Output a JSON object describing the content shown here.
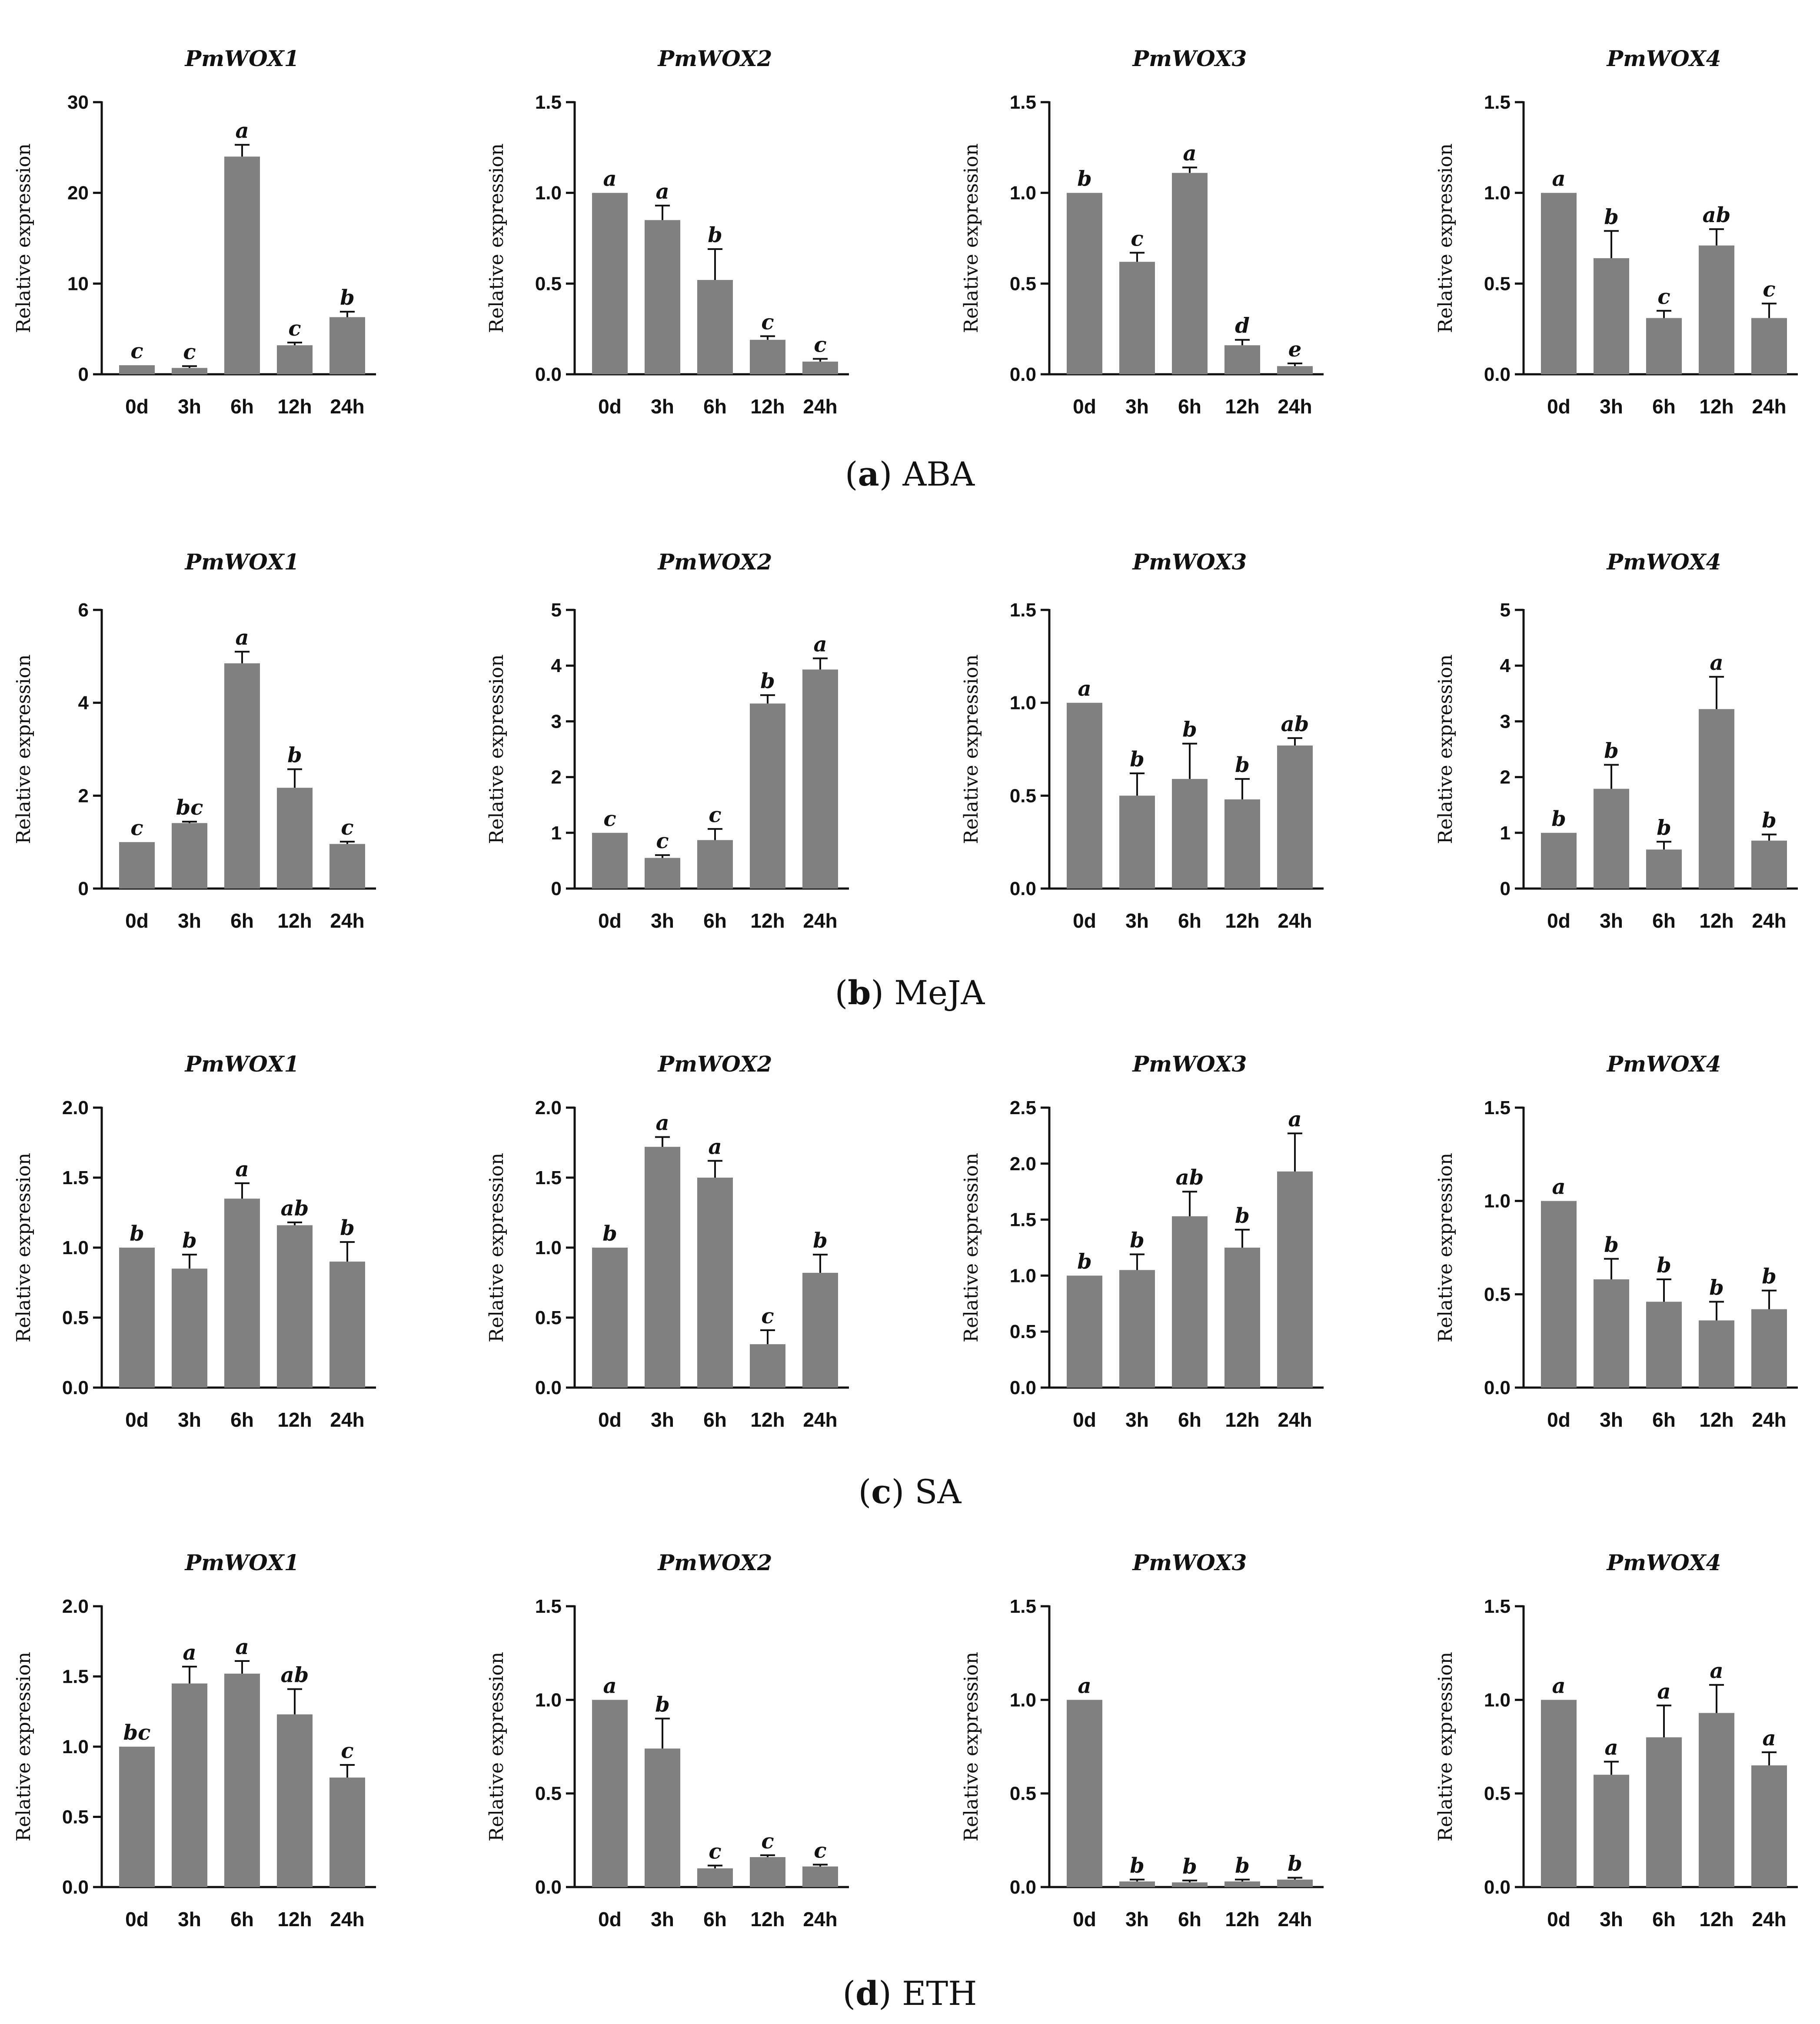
{
  "y_axis_title": "Relative expression",
  "groups": [
    {
      "letter": "a",
      "name": "ABA"
    },
    {
      "letter": "b",
      "name": "MeJA"
    },
    {
      "letter": "c",
      "name": "SA"
    },
    {
      "letter": "d",
      "name": "ETH"
    }
  ],
  "chart_data": [
    {
      "type": "bar",
      "group": "ABA",
      "title": "PmWOX1",
      "ylabel": "Relative expression",
      "categories": [
        "0d",
        "3h",
        "6h",
        "12h",
        "24h"
      ],
      "values": [
        1.0,
        0.7,
        24.0,
        3.2,
        6.3
      ],
      "errors": [
        0,
        0.2,
        1.3,
        0.3,
        0.6
      ],
      "letters": [
        "c",
        "c",
        "a",
        "c",
        "b"
      ],
      "ylim": [
        0,
        30
      ],
      "yticks": [
        "0",
        "10",
        "20",
        "30"
      ]
    },
    {
      "type": "bar",
      "group": "ABA",
      "title": "PmWOX2",
      "ylabel": "Relative expression",
      "categories": [
        "0d",
        "3h",
        "6h",
        "12h",
        "24h"
      ],
      "values": [
        1.0,
        0.85,
        0.52,
        0.19,
        0.07
      ],
      "errors": [
        0,
        0.08,
        0.17,
        0.02,
        0.015
      ],
      "letters": [
        "a",
        "a",
        "b",
        "c",
        "c"
      ],
      "ylim": [
        0,
        1.5
      ],
      "yticks": [
        "0.0",
        "0.5",
        "1.0",
        "1.5"
      ]
    },
    {
      "type": "bar",
      "group": "ABA",
      "title": "PmWOX3",
      "ylabel": "Relative expression",
      "categories": [
        "0d",
        "3h",
        "6h",
        "12h",
        "24h"
      ],
      "values": [
        1.0,
        0.62,
        1.11,
        0.16,
        0.045
      ],
      "errors": [
        0,
        0.05,
        0.03,
        0.03,
        0.015
      ],
      "letters": [
        "b",
        "c",
        "a",
        "d",
        "e"
      ],
      "ylim": [
        0,
        1.5
      ],
      "yticks": [
        "0.0",
        "0.5",
        "1.0",
        "1.5"
      ]
    },
    {
      "type": "bar",
      "group": "ABA",
      "title": "PmWOX4",
      "ylabel": "Relative expression",
      "categories": [
        "0d",
        "3h",
        "6h",
        "12h",
        "24h"
      ],
      "values": [
        1.0,
        0.64,
        0.31,
        0.71,
        0.31
      ],
      "errors": [
        0,
        0.15,
        0.04,
        0.09,
        0.08
      ],
      "letters": [
        "a",
        "b",
        "c",
        "ab",
        "c"
      ],
      "ylim": [
        0,
        1.5
      ],
      "yticks": [
        "0.0",
        "0.5",
        "1.0",
        "1.5"
      ]
    },
    {
      "type": "bar",
      "group": "MeJA",
      "title": "PmWOX1",
      "ylabel": "Relative expression",
      "categories": [
        "0d",
        "3h",
        "6h",
        "12h",
        "24h"
      ],
      "values": [
        1.0,
        1.41,
        4.85,
        2.17,
        0.96
      ],
      "errors": [
        0,
        0.03,
        0.25,
        0.4,
        0.05
      ],
      "letters": [
        "c",
        "bc",
        "a",
        "b",
        "c"
      ],
      "ylim": [
        0,
        6
      ],
      "yticks": [
        "0",
        "2",
        "4",
        "6"
      ]
    },
    {
      "type": "bar",
      "group": "MeJA",
      "title": "PmWOX2",
      "ylabel": "Relative expression",
      "categories": [
        "0d",
        "3h",
        "6h",
        "12h",
        "24h"
      ],
      "values": [
        1.0,
        0.55,
        0.87,
        3.32,
        3.93
      ],
      "errors": [
        0,
        0.05,
        0.2,
        0.15,
        0.2
      ],
      "letters": [
        "c",
        "c",
        "c",
        "b",
        "a"
      ],
      "ylim": [
        0,
        5
      ],
      "yticks": [
        "0",
        "1",
        "2",
        "3",
        "4",
        "5"
      ]
    },
    {
      "type": "bar",
      "group": "MeJA",
      "title": "PmWOX3",
      "ylabel": "Relative expression",
      "categories": [
        "0d",
        "3h",
        "6h",
        "12h",
        "24h"
      ],
      "values": [
        1.0,
        0.5,
        0.59,
        0.48,
        0.77
      ],
      "errors": [
        0,
        0.12,
        0.19,
        0.11,
        0.04
      ],
      "letters": [
        "a",
        "b",
        "b",
        "b",
        "ab"
      ],
      "ylim": [
        0,
        1.5
      ],
      "yticks": [
        "0.0",
        "0.5",
        "1.0",
        "1.5"
      ]
    },
    {
      "type": "bar",
      "group": "MeJA",
      "title": "PmWOX4",
      "ylabel": "Relative expression",
      "categories": [
        "0d",
        "3h",
        "6h",
        "12h",
        "24h"
      ],
      "values": [
        1.0,
        1.79,
        0.7,
        3.22,
        0.86
      ],
      "errors": [
        0,
        0.43,
        0.14,
        0.58,
        0.11
      ],
      "letters": [
        "b",
        "b",
        "b",
        "a",
        "b"
      ],
      "ylim": [
        0,
        5
      ],
      "yticks": [
        "0",
        "1",
        "2",
        "3",
        "4",
        "5"
      ]
    },
    {
      "type": "bar",
      "group": "SA",
      "title": "PmWOX1",
      "ylabel": "Relative expression",
      "categories": [
        "0d",
        "3h",
        "6h",
        "12h",
        "24h"
      ],
      "values": [
        1.0,
        0.85,
        1.35,
        1.16,
        0.9
      ],
      "errors": [
        0,
        0.1,
        0.11,
        0.02,
        0.14
      ],
      "letters": [
        "b",
        "b",
        "a",
        "ab",
        "b"
      ],
      "ylim": [
        0,
        2.0
      ],
      "yticks": [
        "0.0",
        "0.5",
        "1.0",
        "1.5",
        "2.0"
      ]
    },
    {
      "type": "bar",
      "group": "SA",
      "title": "PmWOX2",
      "ylabel": "Relative expression",
      "categories": [
        "0d",
        "3h",
        "6h",
        "12h",
        "24h"
      ],
      "values": [
        1.0,
        1.72,
        1.5,
        0.31,
        0.82
      ],
      "errors": [
        0,
        0.07,
        0.12,
        0.1,
        0.13
      ],
      "letters": [
        "b",
        "a",
        "a",
        "c",
        "b"
      ],
      "ylim": [
        0,
        2.0
      ],
      "yticks": [
        "0.0",
        "0.5",
        "1.0",
        "1.5",
        "2.0"
      ]
    },
    {
      "type": "bar",
      "group": "SA",
      "title": "PmWOX3",
      "ylabel": "Relative expression",
      "categories": [
        "0d",
        "3h",
        "6h",
        "12h",
        "24h"
      ],
      "values": [
        1.0,
        1.05,
        1.53,
        1.25,
        1.93
      ],
      "errors": [
        0,
        0.14,
        0.22,
        0.16,
        0.34
      ],
      "letters": [
        "b",
        "b",
        "ab",
        "b",
        "a"
      ],
      "ylim": [
        0,
        2.5
      ],
      "yticks": [
        "0.0",
        "0.5",
        "1.0",
        "1.5",
        "2.0",
        "2.5"
      ]
    },
    {
      "type": "bar",
      "group": "SA",
      "title": "PmWOX4",
      "ylabel": "Relative expression",
      "categories": [
        "0d",
        "3h",
        "6h",
        "12h",
        "24h"
      ],
      "values": [
        1.0,
        0.58,
        0.46,
        0.36,
        0.42
      ],
      "errors": [
        0,
        0.11,
        0.12,
        0.1,
        0.1
      ],
      "letters": [
        "a",
        "b",
        "b",
        "b",
        "b"
      ],
      "ylim": [
        0,
        1.5
      ],
      "yticks": [
        "0.0",
        "0.5",
        "1.0",
        "1.5"
      ]
    },
    {
      "type": "bar",
      "group": "ETH",
      "title": "PmWOX1",
      "ylabel": "Relative expression",
      "categories": [
        "0d",
        "3h",
        "6h",
        "12h",
        "24h"
      ],
      "values": [
        1.0,
        1.45,
        1.52,
        1.23,
        0.78
      ],
      "errors": [
        0,
        0.12,
        0.09,
        0.18,
        0.09
      ],
      "letters": [
        "bc",
        "a",
        "a",
        "ab",
        "c"
      ],
      "ylim": [
        0,
        2.0
      ],
      "yticks": [
        "0.0",
        "0.5",
        "1.0",
        "1.5",
        "2.0"
      ]
    },
    {
      "type": "bar",
      "group": "ETH",
      "title": "PmWOX2",
      "ylabel": "Relative expression",
      "categories": [
        "0d",
        "3h",
        "6h",
        "12h",
        "24h"
      ],
      "values": [
        1.0,
        0.74,
        0.1,
        0.16,
        0.11
      ],
      "errors": [
        0,
        0.16,
        0.015,
        0.01,
        0.01
      ],
      "letters": [
        "a",
        "b",
        "c",
        "c",
        "c"
      ],
      "ylim": [
        0,
        1.5
      ],
      "yticks": [
        "0.0",
        "0.5",
        "1.0",
        "1.5"
      ]
    },
    {
      "type": "bar",
      "group": "ETH",
      "title": "PmWOX3",
      "ylabel": "Relative expression",
      "categories": [
        "0d",
        "3h",
        "6h",
        "12h",
        "24h"
      ],
      "values": [
        1.0,
        0.03,
        0.025,
        0.03,
        0.04
      ],
      "errors": [
        0,
        0.01,
        0.01,
        0.01,
        0.01
      ],
      "letters": [
        "a",
        "b",
        "b",
        "b",
        "b"
      ],
      "ylim": [
        0,
        1.5
      ],
      "yticks": [
        "0.0",
        "0.5",
        "1.0",
        "1.5"
      ]
    },
    {
      "type": "bar",
      "group": "ETH",
      "title": "PmWOX4",
      "ylabel": "Relative expression",
      "categories": [
        "0d",
        "3h",
        "6h",
        "12h",
        "24h"
      ],
      "values": [
        1.0,
        0.6,
        0.8,
        0.93,
        0.65
      ],
      "errors": [
        0,
        0.07,
        0.17,
        0.15,
        0.07
      ],
      "letters": [
        "a",
        "a",
        "a",
        "a",
        "a"
      ],
      "ylim": [
        0,
        1.5
      ],
      "yticks": [
        "0.0",
        "0.5",
        "1.0",
        "1.5"
      ]
    }
  ],
  "colors": {
    "bar": "#808080",
    "axis": "#111111",
    "text": "#111111"
  }
}
